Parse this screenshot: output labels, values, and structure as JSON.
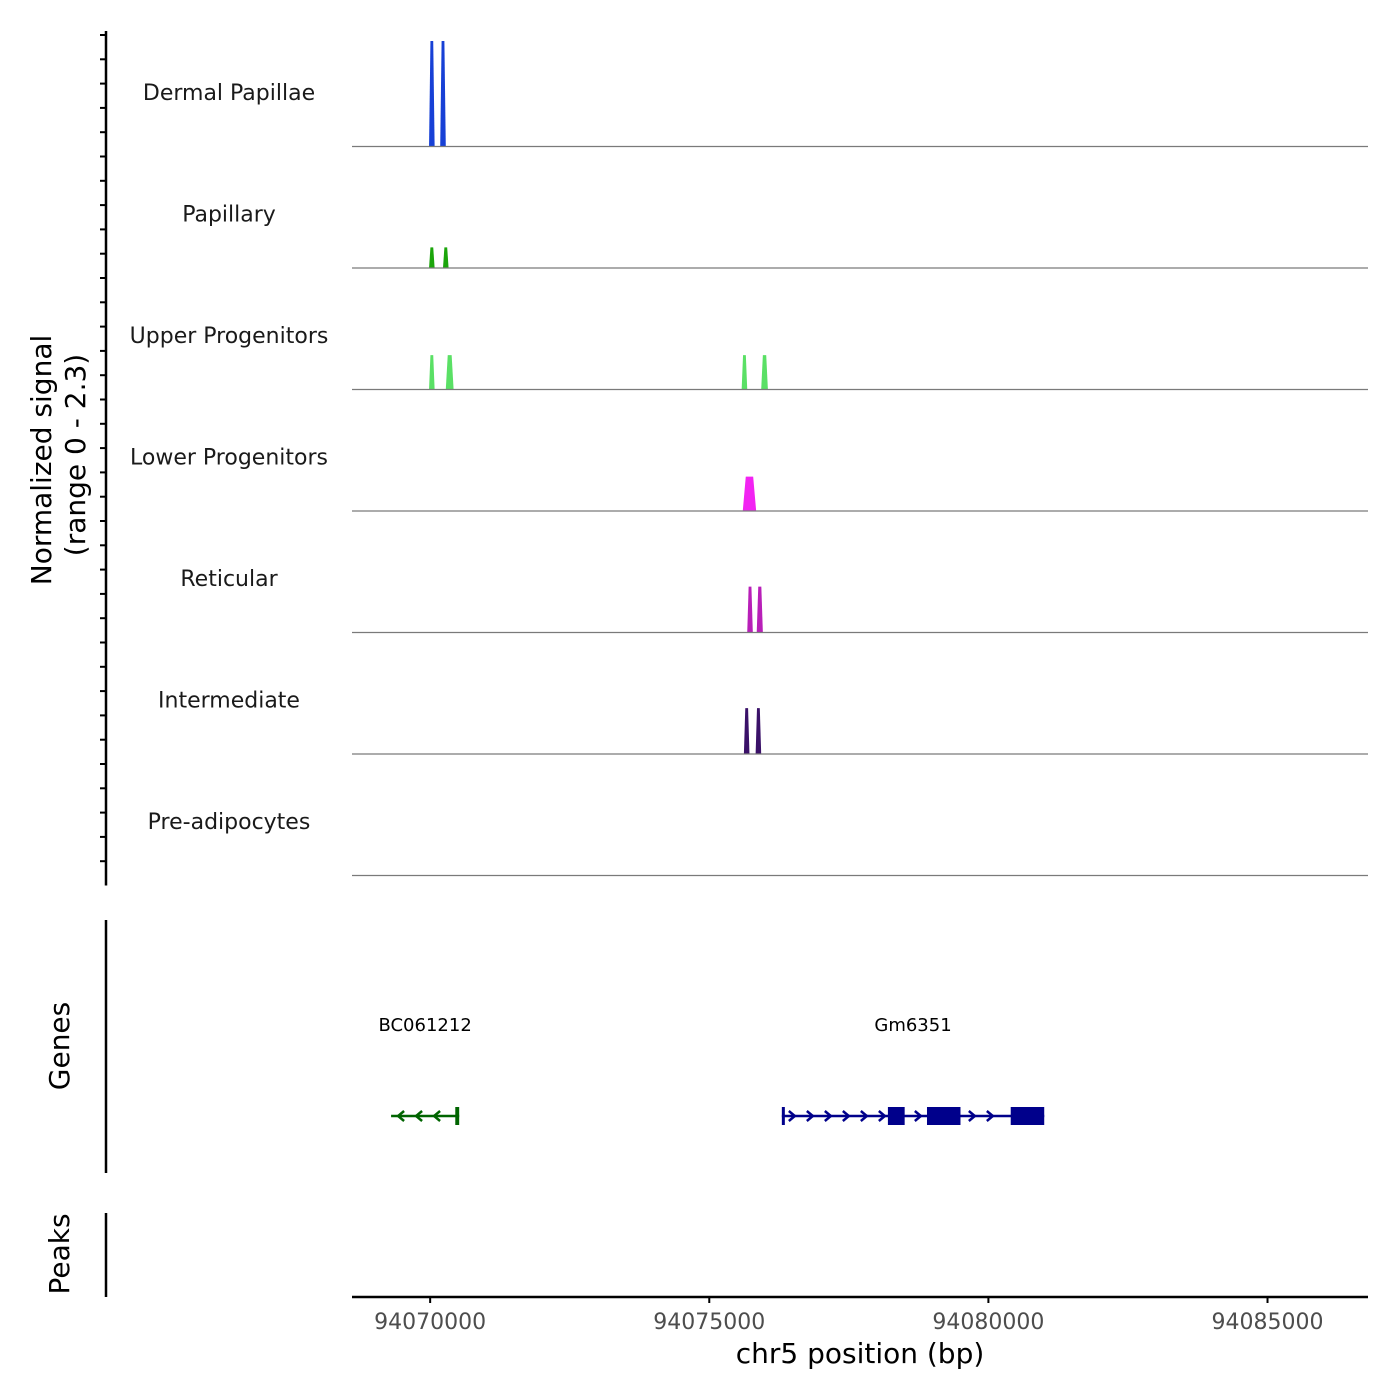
{
  "chart_data": {
    "type": "coverage",
    "chromosome": "chr5",
    "xlabel": "chr5 position (bp)",
    "xlim": [
      94068600,
      94086800
    ],
    "xticks": [
      94070000,
      94075000,
      94080000,
      94085000
    ],
    "xtick_labels": [
      "94070000",
      "94075000",
      "94080000",
      "94085000"
    ],
    "signal_axis_label": "Normalized signal",
    "signal_range_label": "(range 0 - 2.3)",
    "ylim": [
      0,
      2.3
    ],
    "tracks": [
      {
        "name": "Dermal Papillae",
        "color": "#1740d6",
        "peaks": [
          {
            "start": 94069980,
            "end": 94070080,
            "value": 2.3
          },
          {
            "start": 94070180,
            "end": 94070280,
            "value": 2.3
          }
        ]
      },
      {
        "name": "Papillary",
        "color": "#1ba50b",
        "peaks": [
          {
            "start": 94069980,
            "end": 94070080,
            "value": 0.45
          },
          {
            "start": 94070230,
            "end": 94070330,
            "value": 0.45
          }
        ]
      },
      {
        "name": "Upper Progenitors",
        "color": "#5ae065",
        "peaks": [
          {
            "start": 94069980,
            "end": 94070080,
            "value": 0.75
          },
          {
            "start": 94070280,
            "end": 94070420,
            "value": 0.75
          },
          {
            "start": 94075580,
            "end": 94075680,
            "value": 0.75
          },
          {
            "start": 94075930,
            "end": 94076050,
            "value": 0.75
          }
        ]
      },
      {
        "name": "Lower Progenitors",
        "color": "#f223f2",
        "peaks": [
          {
            "start": 94075600,
            "end": 94075840,
            "value": 0.75
          }
        ]
      },
      {
        "name": "Reticular",
        "color": "#b81fb8",
        "peaks": [
          {
            "start": 94075680,
            "end": 94075780,
            "value": 1.0
          },
          {
            "start": 94075850,
            "end": 94075960,
            "value": 1.0
          }
        ]
      },
      {
        "name": "Intermediate",
        "color": "#3a1168",
        "peaks": [
          {
            "start": 94075620,
            "end": 94075720,
            "value": 1.0
          },
          {
            "start": 94075830,
            "end": 94075930,
            "value": 1.0
          }
        ]
      },
      {
        "name": "Pre-adipocytes",
        "color": "#555555",
        "peaks": []
      }
    ],
    "genes_label": "Genes",
    "genes": [
      {
        "name": "BC061212",
        "strand": "-",
        "color": "#006400",
        "start": 94069300,
        "end": 94070520,
        "exons": [
          {
            "start": 94070450,
            "end": 94070520
          }
        ]
      },
      {
        "name": "Gm6351",
        "strand": "+",
        "color": "#00008b",
        "start": 94076300,
        "end": 94081000,
        "exons": [
          {
            "start": 94076300,
            "end": 94076340
          },
          {
            "start": 94078200,
            "end": 94078500
          },
          {
            "start": 94078900,
            "end": 94079500
          },
          {
            "start": 94080400,
            "end": 94081000
          }
        ]
      }
    ],
    "peaks_label": "Peaks",
    "peak_regions": []
  }
}
